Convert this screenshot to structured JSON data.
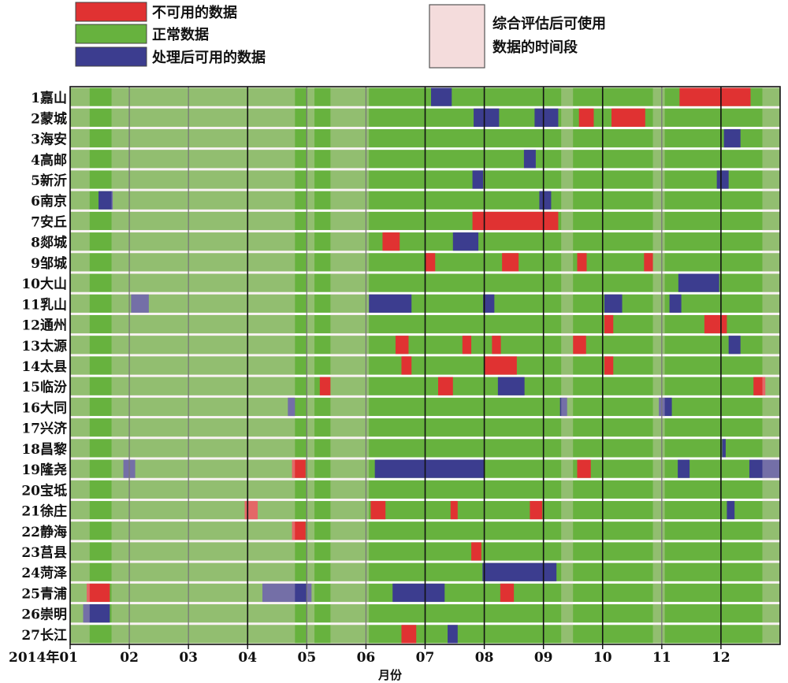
{
  "chart_data": {
    "type": "timeline",
    "xlabel": "月份",
    "x_ticks": [
      "2014年01",
      "02",
      "03",
      "04",
      "05",
      "06",
      "07",
      "08",
      "09",
      "10",
      "11",
      "12"
    ],
    "x_range": [
      1,
      13
    ],
    "legend": {
      "placement": "top",
      "items": [
        {
          "key": "unavailable",
          "label": "不可用的数据",
          "color": "#e03232"
        },
        {
          "key": "normal",
          "label": "正常数据",
          "color": "#67b23e"
        },
        {
          "key": "processed",
          "label": "处理后可用的数据",
          "color": "#3c3d8f"
        }
      ],
      "assessed_label": "综合评估后可使用数据的时间段",
      "assessed_label_lines": [
        "综合评估后可使用",
        "数据的时间段"
      ]
    },
    "colors": {
      "unavailable": "#e03232",
      "normal": "#67b23e",
      "processed": "#3c3d8f",
      "assessed_overlay": "#ecd9d9",
      "legend_assessed": "#f4dcdc"
    },
    "assessed_periods": [
      [
        1.0,
        1.33
      ],
      [
        1.7,
        4.8
      ],
      [
        5.0,
        5.13
      ],
      [
        5.4,
        6.05
      ],
      [
        9.3,
        9.5
      ],
      [
        10.85,
        11.05
      ],
      [
        12.7,
        13.0
      ]
    ],
    "stations": [
      {
        "name": "1嘉山",
        "segments": [
          {
            "start": 7.1,
            "end": 7.45,
            "status": "processed"
          },
          {
            "start": 11.3,
            "end": 12.5,
            "status": "unavailable"
          }
        ]
      },
      {
        "name": "2蒙城",
        "segments": [
          {
            "start": 7.82,
            "end": 8.25,
            "status": "processed"
          },
          {
            "start": 8.85,
            "end": 9.25,
            "status": "processed"
          },
          {
            "start": 9.6,
            "end": 9.85,
            "status": "unavailable"
          },
          {
            "start": 10.15,
            "end": 10.72,
            "status": "unavailable"
          }
        ]
      },
      {
        "name": "3海安",
        "segments": [
          {
            "start": 12.05,
            "end": 12.33,
            "status": "processed"
          }
        ]
      },
      {
        "name": "4高邮",
        "segments": [
          {
            "start": 8.67,
            "end": 8.87,
            "status": "processed"
          }
        ]
      },
      {
        "name": "5新沂",
        "segments": [
          {
            "start": 7.8,
            "end": 7.98,
            "status": "processed"
          },
          {
            "start": 11.93,
            "end": 12.13,
            "status": "processed"
          }
        ]
      },
      {
        "name": "6南京",
        "segments": [
          {
            "start": 1.48,
            "end": 1.72,
            "status": "processed"
          },
          {
            "start": 8.93,
            "end": 9.13,
            "status": "processed"
          }
        ]
      },
      {
        "name": "7安丘",
        "segments": [
          {
            "start": 7.8,
            "end": 9.25,
            "status": "unavailable"
          }
        ]
      },
      {
        "name": "8郯城",
        "segments": [
          {
            "start": 6.28,
            "end": 6.57,
            "status": "unavailable"
          },
          {
            "start": 7.47,
            "end": 7.9,
            "status": "processed"
          }
        ]
      },
      {
        "name": "9邹城",
        "segments": [
          {
            "start": 7.0,
            "end": 7.17,
            "status": "unavailable"
          },
          {
            "start": 8.3,
            "end": 8.58,
            "status": "unavailable"
          },
          {
            "start": 9.57,
            "end": 9.73,
            "status": "unavailable"
          },
          {
            "start": 10.7,
            "end": 10.85,
            "status": "unavailable"
          }
        ]
      },
      {
        "name": "10大山",
        "segments": [
          {
            "start": 11.28,
            "end": 11.97,
            "status": "processed"
          }
        ]
      },
      {
        "name": "11乳山",
        "segments": [
          {
            "start": 2.03,
            "end": 2.33,
            "status": "processed"
          },
          {
            "start": 6.05,
            "end": 6.77,
            "status": "processed"
          },
          {
            "start": 7.98,
            "end": 8.17,
            "status": "processed"
          },
          {
            "start": 10.03,
            "end": 10.33,
            "status": "processed"
          },
          {
            "start": 11.13,
            "end": 11.33,
            "status": "processed"
          }
        ]
      },
      {
        "name": "12通州",
        "segments": [
          {
            "start": 10.03,
            "end": 10.18,
            "status": "unavailable"
          },
          {
            "start": 11.72,
            "end": 12.1,
            "status": "unavailable"
          }
        ]
      },
      {
        "name": "13太源",
        "segments": [
          {
            "start": 6.5,
            "end": 6.72,
            "status": "unavailable"
          },
          {
            "start": 7.63,
            "end": 7.78,
            "status": "unavailable"
          },
          {
            "start": 8.13,
            "end": 8.28,
            "status": "unavailable"
          },
          {
            "start": 9.5,
            "end": 9.72,
            "status": "unavailable"
          },
          {
            "start": 12.13,
            "end": 12.33,
            "status": "processed"
          }
        ]
      },
      {
        "name": "14太县",
        "segments": [
          {
            "start": 6.6,
            "end": 6.77,
            "status": "unavailable"
          },
          {
            "start": 8.0,
            "end": 8.55,
            "status": "unavailable"
          },
          {
            "start": 10.03,
            "end": 10.18,
            "status": "unavailable"
          }
        ]
      },
      {
        "name": "15临汾",
        "segments": [
          {
            "start": 5.22,
            "end": 5.4,
            "status": "unavailable"
          },
          {
            "start": 7.22,
            "end": 7.47,
            "status": "unavailable"
          },
          {
            "start": 8.23,
            "end": 8.68,
            "status": "processed"
          },
          {
            "start": 12.55,
            "end": 12.75,
            "status": "unavailable"
          }
        ]
      },
      {
        "name": "16大同",
        "segments": [
          {
            "start": 4.68,
            "end": 4.8,
            "status": "processed"
          },
          {
            "start": 9.28,
            "end": 9.4,
            "status": "processed"
          },
          {
            "start": 10.95,
            "end": 11.17,
            "status": "processed"
          }
        ]
      },
      {
        "name": "17兴济",
        "segments": []
      },
      {
        "name": "18昌黎",
        "segments": [
          {
            "start": 12.02,
            "end": 12.08,
            "status": "processed"
          }
        ]
      },
      {
        "name": "19隆尧",
        "segments": [
          {
            "start": 1.9,
            "end": 2.1,
            "status": "processed"
          },
          {
            "start": 4.75,
            "end": 4.98,
            "status": "unavailable"
          },
          {
            "start": 6.15,
            "end": 8.0,
            "status": "processed"
          },
          {
            "start": 9.57,
            "end": 9.8,
            "status": "unavailable"
          },
          {
            "start": 11.27,
            "end": 11.47,
            "status": "processed"
          },
          {
            "start": 12.48,
            "end": 13.0,
            "status": "processed"
          }
        ]
      },
      {
        "name": "20宝坻",
        "segments": []
      },
      {
        "name": "21徐庄",
        "segments": [
          {
            "start": 3.95,
            "end": 4.17,
            "status": "unavailable"
          },
          {
            "start": 6.08,
            "end": 6.33,
            "status": "unavailable"
          },
          {
            "start": 7.43,
            "end": 7.55,
            "status": "unavailable"
          },
          {
            "start": 8.77,
            "end": 8.98,
            "status": "unavailable"
          },
          {
            "start": 12.1,
            "end": 12.23,
            "status": "processed"
          }
        ]
      },
      {
        "name": "22静海",
        "segments": [
          {
            "start": 4.75,
            "end": 4.98,
            "status": "unavailable"
          }
        ]
      },
      {
        "name": "23莒县",
        "segments": [
          {
            "start": 7.78,
            "end": 7.95,
            "status": "unavailable"
          }
        ]
      },
      {
        "name": "24菏泽",
        "segments": [
          {
            "start": 7.97,
            "end": 9.22,
            "status": "processed"
          }
        ]
      },
      {
        "name": "25青浦",
        "segments": [
          {
            "start": 1.28,
            "end": 1.67,
            "status": "unavailable"
          },
          {
            "start": 4.25,
            "end": 5.08,
            "status": "processed"
          },
          {
            "start": 6.45,
            "end": 7.33,
            "status": "processed"
          },
          {
            "start": 8.27,
            "end": 8.5,
            "status": "unavailable"
          }
        ]
      },
      {
        "name": "26崇明",
        "segments": [
          {
            "start": 1.22,
            "end": 1.67,
            "status": "processed"
          }
        ]
      },
      {
        "name": "27长江",
        "segments": [
          {
            "start": 6.6,
            "end": 6.85,
            "status": "unavailable"
          },
          {
            "start": 7.38,
            "end": 7.55,
            "status": "processed"
          }
        ]
      }
    ]
  }
}
